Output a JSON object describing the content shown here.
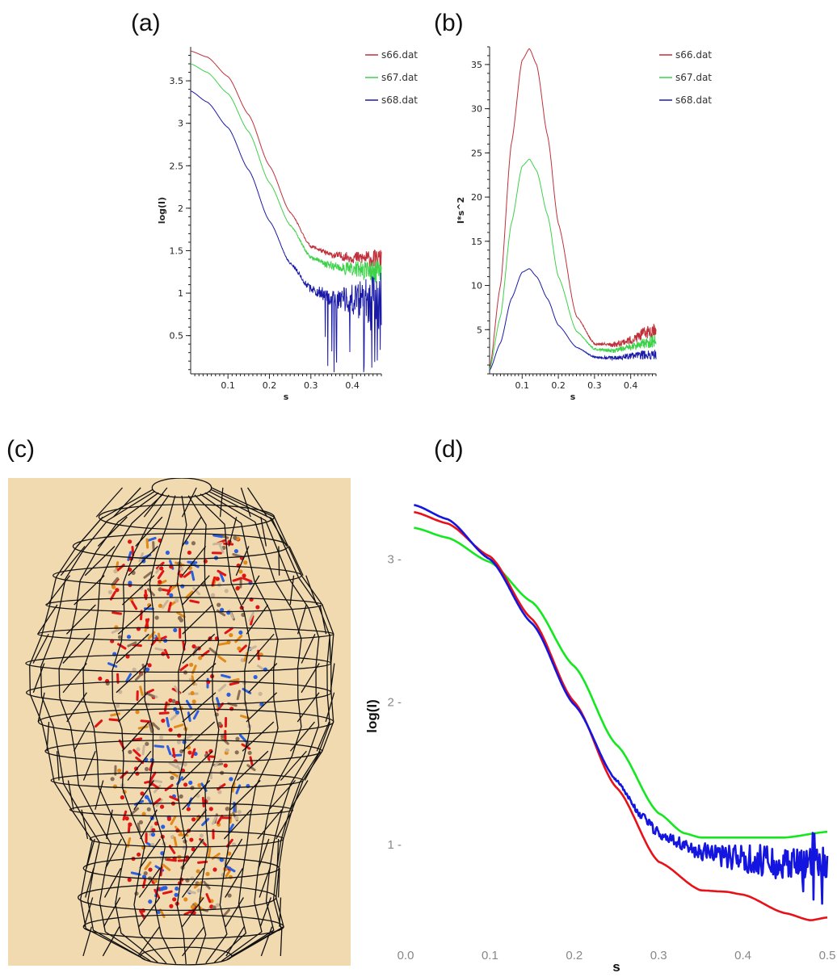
{
  "panels": [
    {
      "letter": "(a)"
    },
    {
      "letter": "(b)"
    },
    {
      "letter": "(c)"
    },
    {
      "letter": "(d)"
    }
  ],
  "colors": {
    "red": "#c0303a",
    "green": "#3ed14a",
    "blue": "#1a1aa8",
    "d_red": "#e8111a",
    "d_green": "#13e81f",
    "d_blue": "#1515e0",
    "mesh_background": "#f2dab0"
  },
  "chart_data": [
    {
      "type": "line",
      "panel": "a",
      "xlabel": "s",
      "ylabel": "log(I)",
      "xlim": [
        0.01,
        0.47
      ],
      "ylim": [
        0.05,
        3.9
      ],
      "xticks": [
        "0.1",
        "0.2",
        "0.3",
        "0.4"
      ],
      "yticks": [
        "0.5",
        "1",
        "1.5",
        "2",
        "2.5",
        "3",
        "3.5"
      ],
      "legend": "top-right",
      "series": [
        {
          "name": "s66.dat",
          "color": "red",
          "noise": 0.12,
          "x": [
            0.01,
            0.05,
            0.1,
            0.15,
            0.2,
            0.25,
            0.3,
            0.35,
            0.4,
            0.47
          ],
          "y": [
            3.85,
            3.78,
            3.55,
            3.1,
            2.5,
            1.95,
            1.55,
            1.45,
            1.42,
            1.4
          ]
        },
        {
          "name": "s67.dat",
          "color": "green",
          "noise": 0.16,
          "x": [
            0.01,
            0.05,
            0.1,
            0.15,
            0.2,
            0.25,
            0.3,
            0.35,
            0.4,
            0.47
          ],
          "y": [
            3.7,
            3.6,
            3.35,
            2.9,
            2.3,
            1.8,
            1.42,
            1.32,
            1.28,
            1.25
          ]
        },
        {
          "name": "s68.dat",
          "color": "blue",
          "noise": 0.35,
          "x": [
            0.01,
            0.05,
            0.1,
            0.15,
            0.2,
            0.25,
            0.3,
            0.35,
            0.4,
            0.47
          ],
          "y": [
            3.38,
            3.25,
            2.95,
            2.45,
            1.85,
            1.35,
            1.05,
            0.95,
            0.92,
            0.9
          ]
        }
      ]
    },
    {
      "type": "line",
      "panel": "b",
      "xlabel": "s",
      "ylabel": "I*s^2",
      "xlim": [
        0.01,
        0.47
      ],
      "ylim": [
        0,
        37
      ],
      "xticks": [
        "0.1",
        "0.2",
        "0.3",
        "0.4"
      ],
      "yticks": [
        "5",
        "10",
        "15",
        "20",
        "25",
        "30",
        "35"
      ],
      "legend": "top-right",
      "series": [
        {
          "name": "s66.dat",
          "color": "red",
          "noise": 0.9,
          "x": [
            0.01,
            0.04,
            0.07,
            0.1,
            0.12,
            0.14,
            0.17,
            0.2,
            0.25,
            0.3,
            0.35,
            0.4,
            0.45,
            0.47
          ],
          "y": [
            0.5,
            10,
            26,
            35.5,
            36.8,
            35,
            27,
            17,
            6.5,
            3.4,
            3.3,
            3.8,
            4.8,
            5.2
          ]
        },
        {
          "name": "s67.dat",
          "color": "green",
          "noise": 0.8,
          "x": [
            0.01,
            0.04,
            0.07,
            0.1,
            0.12,
            0.14,
            0.17,
            0.2,
            0.25,
            0.3,
            0.35,
            0.4,
            0.45,
            0.47
          ],
          "y": [
            0.5,
            6.5,
            17,
            23.5,
            24.3,
            23,
            18,
            11,
            4.8,
            2.8,
            2.6,
            3.0,
            3.6,
            3.8
          ]
        },
        {
          "name": "s68.dat",
          "color": "blue",
          "noise": 0.7,
          "x": [
            0.01,
            0.04,
            0.07,
            0.1,
            0.12,
            0.14,
            0.17,
            0.2,
            0.25,
            0.3,
            0.35,
            0.4,
            0.45,
            0.47
          ],
          "y": [
            0.4,
            3.5,
            8.5,
            11.5,
            11.9,
            11,
            8.5,
            5.5,
            3.0,
            1.9,
            1.8,
            2.0,
            2.2,
            2.3
          ]
        }
      ]
    },
    {
      "type": "line",
      "panel": "d",
      "xlabel": "s",
      "ylabel": "log(I)",
      "xlim": [
        0.0,
        0.5
      ],
      "ylim": [
        0.35,
        3.45
      ],
      "xticks": [
        "0.0",
        "0.1",
        "0.2",
        "0.3",
        "0.4",
        "0.5"
      ],
      "yticks": [
        "1 -",
        "2 -",
        "3 -"
      ],
      "series": [
        {
          "color": "d_blue",
          "noise": 0.12,
          "x": [
            0.01,
            0.05,
            0.1,
            0.15,
            0.2,
            0.25,
            0.28,
            0.3,
            0.35,
            0.4,
            0.45,
            0.5
          ],
          "y": [
            3.38,
            3.28,
            3.0,
            2.55,
            1.98,
            1.45,
            1.2,
            1.08,
            0.95,
            0.9,
            0.88,
            0.86
          ]
        },
        {
          "color": "d_red",
          "noise": 0,
          "x": [
            0.01,
            0.05,
            0.1,
            0.15,
            0.2,
            0.25,
            0.3,
            0.35,
            0.38,
            0.4,
            0.45,
            0.48,
            0.5
          ],
          "y": [
            3.33,
            3.25,
            3.02,
            2.58,
            2.0,
            1.4,
            0.88,
            0.68,
            0.67,
            0.65,
            0.52,
            0.47,
            0.49
          ]
        },
        {
          "color": "d_green",
          "noise": 0,
          "x": [
            0.01,
            0.05,
            0.1,
            0.15,
            0.2,
            0.25,
            0.3,
            0.33,
            0.35,
            0.4,
            0.45,
            0.5
          ],
          "y": [
            3.22,
            3.15,
            2.98,
            2.7,
            2.25,
            1.7,
            1.22,
            1.08,
            1.05,
            1.05,
            1.05,
            1.09
          ]
        }
      ]
    }
  ]
}
